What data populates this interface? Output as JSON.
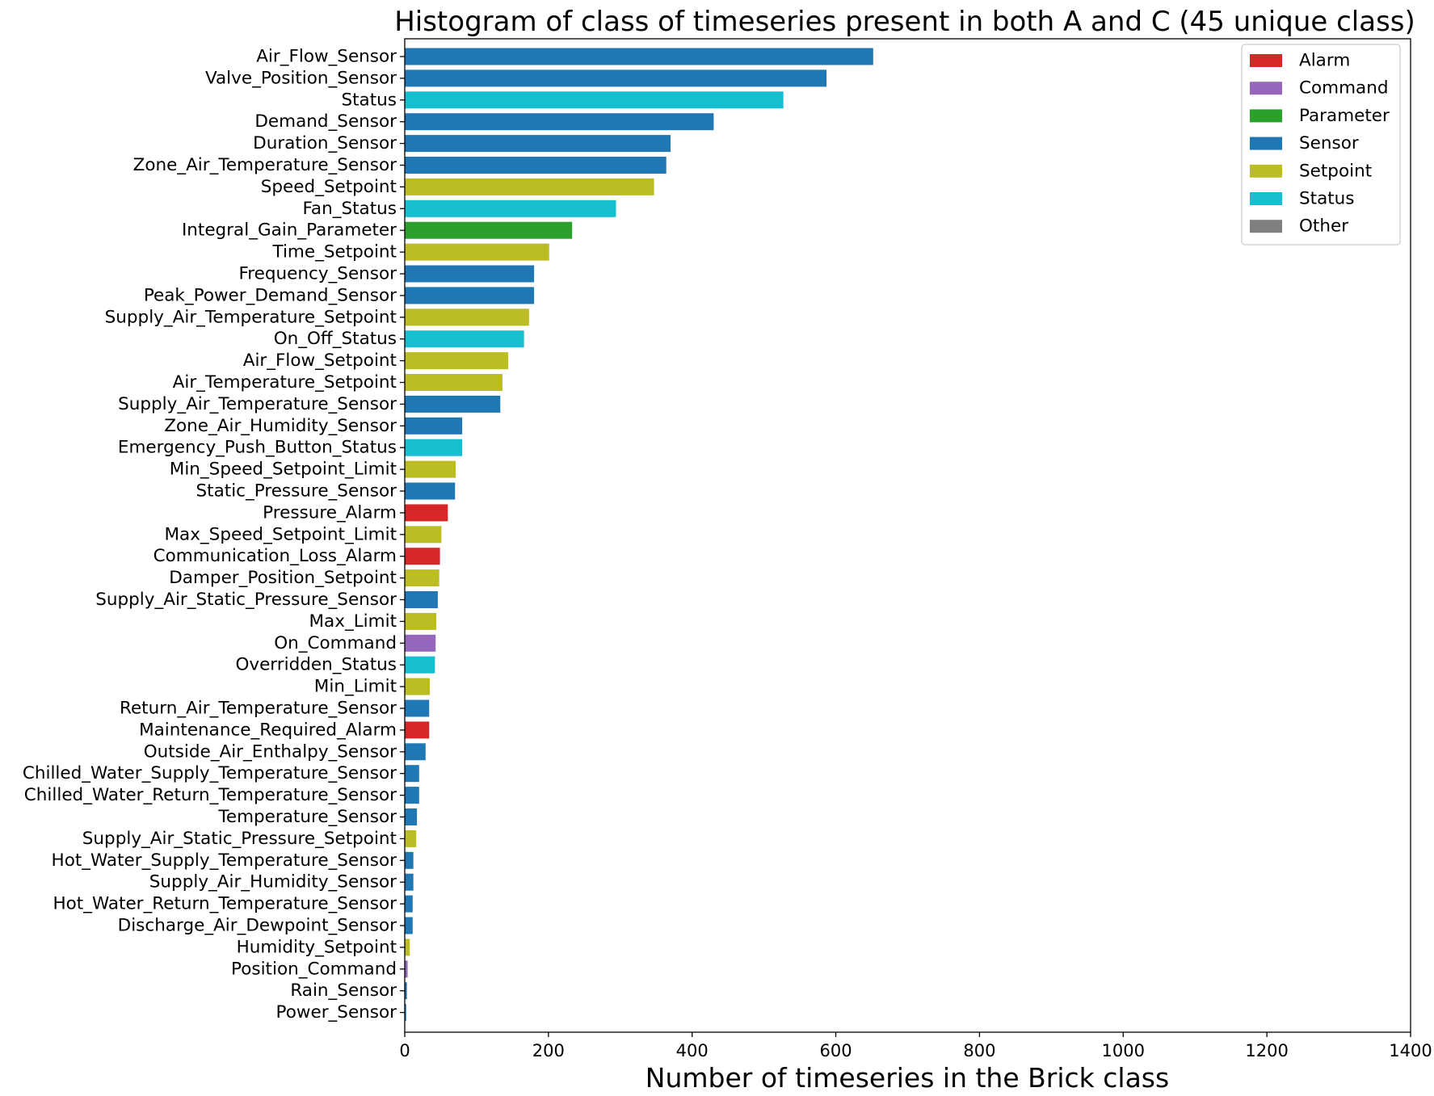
{
  "chart_data": {
    "type": "bar",
    "orientation": "horizontal",
    "title": "Histogram of class of timeseries present in both A and C (45 unique class)",
    "xlabel": "Number of timeseries in the Brick class",
    "ylabel": "",
    "xlim": [
      0,
      1400
    ],
    "xticks": [
      "0",
      "200",
      "400",
      "600",
      "800",
      "1000",
      "1200",
      "1400"
    ],
    "grid": false,
    "legend_position": "top-right",
    "legend": [
      {
        "name": "Alarm",
        "color": "#d62728"
      },
      {
        "name": "Command",
        "color": "#9467bd"
      },
      {
        "name": "Parameter",
        "color": "#2ca02c"
      },
      {
        "name": "Sensor",
        "color": "#1f77b4"
      },
      {
        "name": "Setpoint",
        "color": "#bcbd22"
      },
      {
        "name": "Status",
        "color": "#17becf"
      },
      {
        "name": "Other",
        "color": "#7f7f7f"
      }
    ],
    "categories": [
      "Air_Flow_Sensor",
      "Valve_Position_Sensor",
      "Status",
      "Demand_Sensor",
      "Duration_Sensor",
      "Zone_Air_Temperature_Sensor",
      "Speed_Setpoint",
      "Fan_Status",
      "Integral_Gain_Parameter",
      "Time_Setpoint",
      "Frequency_Sensor",
      "Peak_Power_Demand_Sensor",
      "Supply_Air_Temperature_Setpoint",
      "On_Off_Status",
      "Air_Flow_Setpoint",
      "Air_Temperature_Setpoint",
      "Supply_Air_Temperature_Sensor",
      "Zone_Air_Humidity_Sensor",
      "Emergency_Push_Button_Status",
      "Min_Speed_Setpoint_Limit",
      "Static_Pressure_Sensor",
      "Pressure_Alarm",
      "Max_Speed_Setpoint_Limit",
      "Communication_Loss_Alarm",
      "Damper_Position_Setpoint",
      "Supply_Air_Static_Pressure_Sensor",
      "Max_Limit",
      "On_Command",
      "Overridden_Status",
      "Min_Limit",
      "Return_Air_Temperature_Sensor",
      "Maintenance_Required_Alarm",
      "Outside_Air_Enthalpy_Sensor",
      "Chilled_Water_Supply_Temperature_Sensor",
      "Chilled_Water_Return_Temperature_Sensor",
      "Temperature_Sensor",
      "Supply_Air_Static_Pressure_Setpoint",
      "Hot_Water_Supply_Temperature_Sensor",
      "Supply_Air_Humidity_Sensor",
      "Hot_Water_Return_Temperature_Sensor",
      "Discharge_Air_Dewpoint_Sensor",
      "Humidity_Setpoint",
      "Position_Command",
      "Rain_Sensor",
      "Power_Sensor"
    ],
    "values": [
      652,
      587,
      527,
      430,
      370,
      364,
      347,
      294,
      233,
      201,
      180,
      180,
      173,
      166,
      144,
      136,
      133,
      80,
      80,
      71,
      70,
      60,
      51,
      49,
      48,
      46,
      44,
      43,
      42,
      35,
      34,
      34,
      29,
      20,
      20,
      17,
      16,
      12,
      12,
      11,
      11,
      7,
      4,
      3,
      2
    ],
    "groups": [
      "Sensor",
      "Sensor",
      "Status",
      "Sensor",
      "Sensor",
      "Sensor",
      "Setpoint",
      "Status",
      "Parameter",
      "Setpoint",
      "Sensor",
      "Sensor",
      "Setpoint",
      "Status",
      "Setpoint",
      "Setpoint",
      "Sensor",
      "Sensor",
      "Status",
      "Setpoint",
      "Sensor",
      "Alarm",
      "Setpoint",
      "Alarm",
      "Setpoint",
      "Sensor",
      "Setpoint",
      "Command",
      "Status",
      "Setpoint",
      "Sensor",
      "Alarm",
      "Sensor",
      "Sensor",
      "Sensor",
      "Sensor",
      "Setpoint",
      "Sensor",
      "Sensor",
      "Sensor",
      "Sensor",
      "Setpoint",
      "Command",
      "Sensor",
      "Sensor"
    ]
  }
}
